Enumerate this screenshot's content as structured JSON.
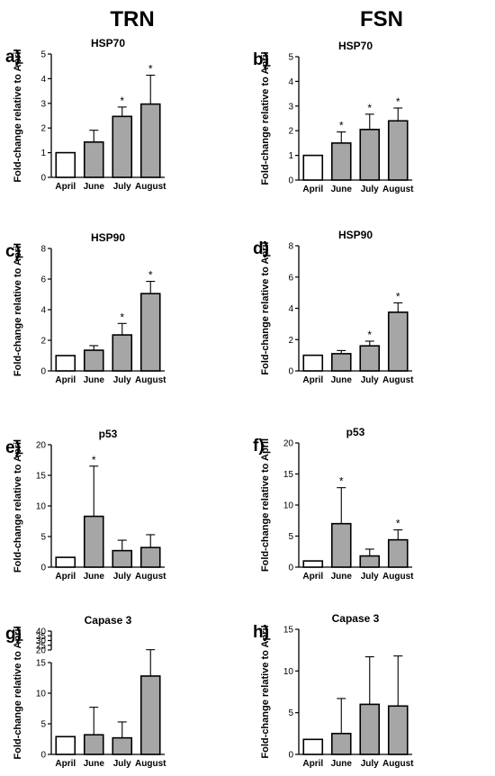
{
  "columns": [
    "TRN",
    "FSN"
  ],
  "ylabel": "Fold-change relative to April",
  "chart_data": [
    {
      "type": "bar",
      "panel": "a)",
      "title": "HSP70",
      "categories": [
        "April",
        "June",
        "July",
        "August"
      ],
      "values": [
        1,
        1.43,
        2.47,
        2.97
      ],
      "errors": [
        0,
        0.48,
        0.38,
        1.17
      ],
      "sig": [
        false,
        false,
        true,
        true
      ],
      "ylim": [
        0,
        5
      ],
      "yticks": [
        0,
        1,
        2,
        3,
        4,
        5
      ],
      "ylabel": "Fold-change relative to April"
    },
    {
      "type": "bar",
      "panel": "b)",
      "title": "HSP70",
      "categories": [
        "April",
        "June",
        "July",
        "August"
      ],
      "values": [
        1,
        1.5,
        2.05,
        2.4
      ],
      "errors": [
        0,
        0.45,
        0.62,
        0.52
      ],
      "sig": [
        false,
        true,
        true,
        true
      ],
      "ylim": [
        0,
        5
      ],
      "yticks": [
        0,
        1,
        2,
        3,
        4,
        5
      ],
      "ylabel": "Fold-change relative to April"
    },
    {
      "type": "bar",
      "panel": "c)",
      "title": "HSP90",
      "categories": [
        "April",
        "June",
        "July",
        "August"
      ],
      "values": [
        1,
        1.35,
        2.35,
        5.05
      ],
      "errors": [
        0,
        0.3,
        0.75,
        0.8
      ],
      "sig": [
        false,
        false,
        true,
        true
      ],
      "ylim": [
        0,
        8
      ],
      "yticks": [
        0,
        2,
        4,
        6,
        8
      ],
      "ylabel": "Fold-change relative to April"
    },
    {
      "type": "bar",
      "panel": "d)",
      "title": "HSP90",
      "categories": [
        "April",
        "June",
        "July",
        "August"
      ],
      "values": [
        1,
        1.1,
        1.6,
        3.75
      ],
      "errors": [
        0,
        0.2,
        0.3,
        0.6
      ],
      "sig": [
        false,
        false,
        true,
        true
      ],
      "ylim": [
        0,
        8
      ],
      "yticks": [
        0,
        2,
        4,
        6,
        8
      ],
      "ylabel": "Fold-change relative to April"
    },
    {
      "type": "bar",
      "panel": "e)",
      "title": "p53",
      "categories": [
        "April",
        "June",
        "July",
        "August"
      ],
      "values": [
        1.6,
        8.3,
        2.7,
        3.2
      ],
      "errors": [
        0,
        8.2,
        1.7,
        2.1
      ],
      "sig": [
        false,
        true,
        false,
        false
      ],
      "ylim": [
        0,
        20
      ],
      "yticks": [
        0,
        5,
        10,
        15,
        20
      ],
      "ylabel": "Fold-change relative to April"
    },
    {
      "type": "bar",
      "panel": "f)",
      "title": "p53",
      "categories": [
        "April",
        "June",
        "July",
        "August"
      ],
      "values": [
        1,
        7,
        1.8,
        4.4
      ],
      "errors": [
        0,
        5.8,
        1.1,
        1.6
      ],
      "sig": [
        false,
        true,
        false,
        true
      ],
      "ylim": [
        0,
        20
      ],
      "yticks": [
        0,
        5,
        10,
        15,
        20
      ],
      "ylabel": "Fold-change relative to April"
    },
    {
      "type": "bar",
      "panel": "g)",
      "title": "Capase 3",
      "categories": [
        "April",
        "June",
        "July",
        "August"
      ],
      "values": [
        2.9,
        3.2,
        2.7,
        12.8
      ],
      "errors": [
        0,
        4.5,
        2.6,
        7.5
      ],
      "sig": [
        false,
        false,
        false,
        false
      ],
      "ylim": [
        0,
        40
      ],
      "yticks": [
        0,
        5,
        10,
        15,
        20,
        25,
        30,
        35,
        40
      ],
      "axis_break": [
        15,
        20
      ],
      "ylabel": "Fold-change relative to April"
    },
    {
      "type": "bar",
      "panel": "h)",
      "title": "Capase 3",
      "categories": [
        "April",
        "June",
        "July",
        "August"
      ],
      "values": [
        1.8,
        2.5,
        6,
        5.8
      ],
      "errors": [
        0,
        4.2,
        5.7,
        6
      ],
      "sig": [
        false,
        false,
        false,
        false
      ],
      "ylim": [
        0,
        15
      ],
      "yticks": [
        0,
        5,
        10,
        15
      ],
      "ylabel": "Fold-change relative to April"
    }
  ],
  "colors": {
    "april_fill": "#ffffff",
    "month_fill": "#a6a6a6",
    "stroke": "#000000"
  },
  "sig_marker": "*"
}
